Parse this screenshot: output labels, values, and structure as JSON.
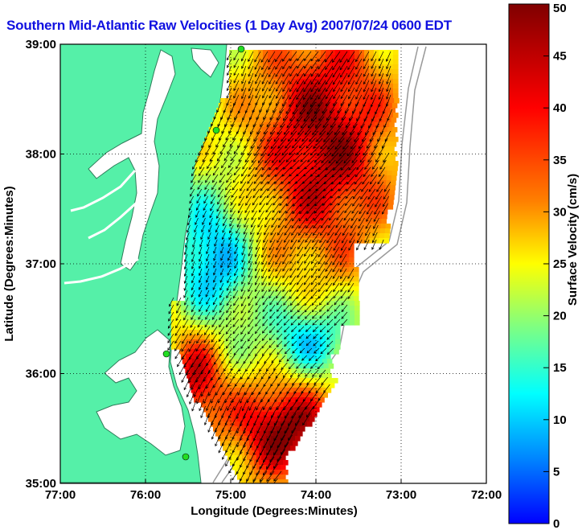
{
  "title": "Southern Mid-Atlantic Raw Velocities (1 Day Avg) 2007/07/24 0600 EDT",
  "map": {
    "x_label": "Longitude (Degrees:Minutes)",
    "y_label": "Latitude (Degrees:Minutes)",
    "x_ticks": [
      "77:00",
      "76:00",
      "75:00",
      "74:00",
      "73:00",
      "72:00"
    ],
    "y_ticks": [
      "39:00",
      "38:00",
      "37:00",
      "36:00",
      "35:00"
    ],
    "lon_range": [
      -77,
      -72
    ],
    "lat_range": [
      35,
      39
    ],
    "grid": true,
    "land_color": "#55f0a8",
    "coastline_color": "#2e7d5a",
    "station_color": "#22dd22"
  },
  "colorbar": {
    "label": "Surface Velocity (cm/s)",
    "range": [
      0,
      50
    ],
    "ticks": [
      "50",
      "45",
      "40",
      "35",
      "30",
      "25",
      "20",
      "15",
      "10",
      "5",
      "0"
    ],
    "colormap": "jet"
  }
}
